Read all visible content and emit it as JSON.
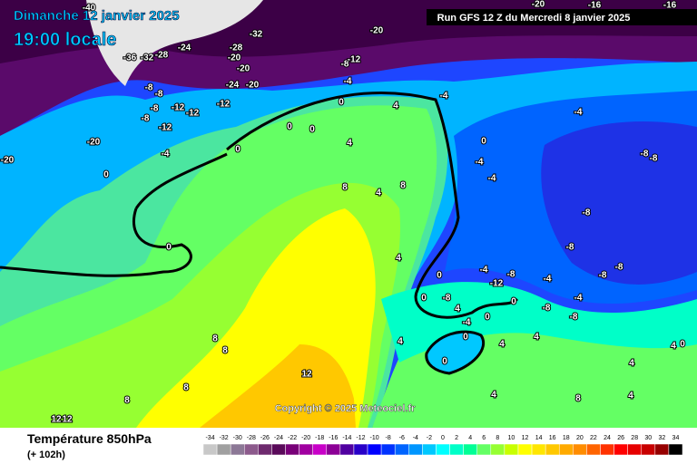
{
  "header": {
    "date": "Dimanche 12 janvier 2025",
    "time": "19:00 locale"
  },
  "run": "Run GFS 12 Z du Mercredi 8 janvier 2025",
  "copyright": "Copyright © 2025 Meteociel.fr",
  "footer": {
    "title": "Température 850hPa",
    "lead": "(+ 102h)"
  },
  "scale": {
    "values": [
      -34,
      -32,
      -30,
      -28,
      -26,
      -24,
      -22,
      -20,
      -18,
      -16,
      -14,
      -12,
      -10,
      -8,
      -6,
      -4,
      -2,
      0,
      2,
      4,
      6,
      8,
      10,
      12,
      14,
      16,
      18,
      20,
      22,
      24,
      26,
      28,
      30,
      32,
      34
    ],
    "colors": [
      "#c8c8c8",
      "#a0a0a0",
      "#8c7896",
      "#8c5a8c",
      "#6e2a6e",
      "#5a0a5a",
      "#780078",
      "#a000a0",
      "#c800c8",
      "#8c0096",
      "#5000a0",
      "#2800c8",
      "#0000ff",
      "#0032ff",
      "#0064ff",
      "#0096ff",
      "#00c8ff",
      "#00ffff",
      "#00ffc8",
      "#00ff96",
      "#64ff64",
      "#96ff32",
      "#c8ff00",
      "#ffff00",
      "#ffe600",
      "#ffc800",
      "#ffaa00",
      "#ff8c00",
      "#ff6400",
      "#ff3200",
      "#ff0000",
      "#e60000",
      "#c80000",
      "#960000",
      "#000000"
    ]
  },
  "contour_labels": [
    -40,
    -20,
    -16,
    -16,
    -32,
    -20,
    -24,
    -28,
    -36,
    -32,
    -28,
    -20,
    -20,
    -8,
    -12,
    -4,
    -24,
    -20,
    -8,
    -8,
    -12,
    -12,
    -12,
    -8,
    -8,
    -12,
    -4,
    -20,
    -20,
    0,
    0,
    4,
    -4,
    0,
    0,
    0,
    4,
    8,
    8,
    4,
    0,
    4,
    0,
    -4,
    -8,
    -8,
    -4,
    0,
    -4,
    -8,
    -8,
    -8,
    -8,
    -4,
    -4,
    -8,
    -8,
    4,
    4,
    0,
    8,
    8,
    8,
    8,
    12,
    12,
    12,
    4,
    0,
    4,
    4,
    0,
    4,
    8,
    4,
    -12,
    -4,
    -8,
    0,
    -8,
    0,
    4,
    -4,
    0
  ]
}
